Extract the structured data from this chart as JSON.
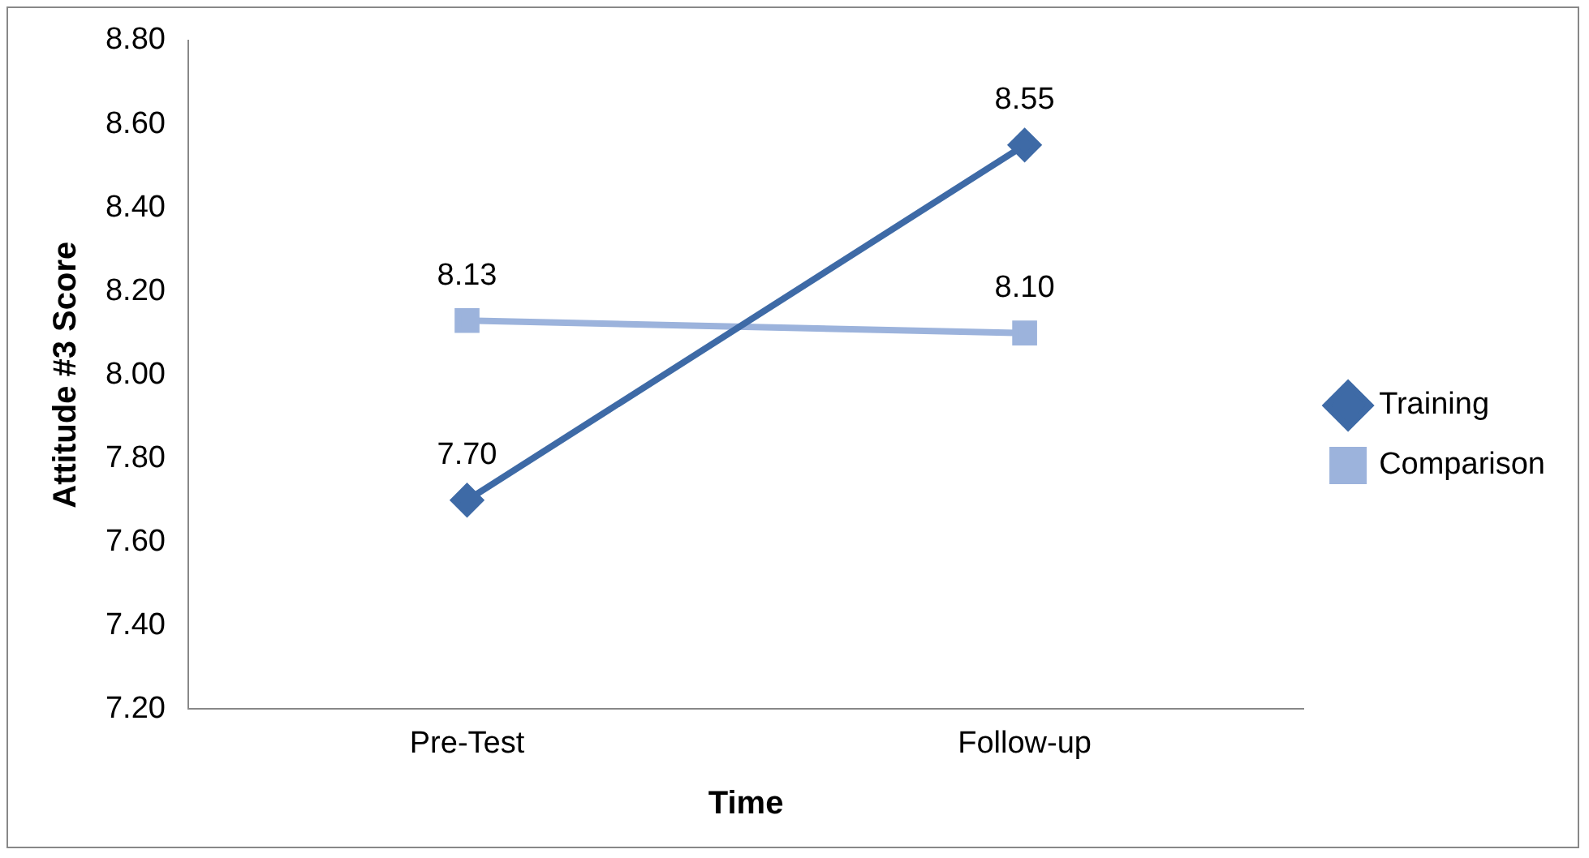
{
  "chart_data": {
    "type": "line",
    "xlabel": "Time",
    "ylabel": "Attitude #3 Score",
    "categories": [
      "Pre-Test",
      "Follow-up"
    ],
    "series": [
      {
        "name": "Training",
        "color": "#3e6aa6",
        "values": [
          7.7,
          8.55
        ],
        "value_labels": [
          "7.70",
          "8.55"
        ],
        "marker": "diamond"
      },
      {
        "name": "Comparison",
        "color": "#9cb3dc",
        "values": [
          8.13,
          8.1
        ],
        "value_labels": [
          "8.13",
          "8.10"
        ],
        "marker": "square"
      }
    ],
    "ylim": [
      7.2,
      8.8
    ],
    "yticks": [
      {
        "value": 7.2,
        "label": "7.20"
      },
      {
        "value": 7.4,
        "label": "7.40"
      },
      {
        "value": 7.6,
        "label": "7.60"
      },
      {
        "value": 7.8,
        "label": "7.80"
      },
      {
        "value": 8.0,
        "label": "8.00"
      },
      {
        "value": 8.2,
        "label": "8.20"
      },
      {
        "value": 8.4,
        "label": "8.40"
      },
      {
        "value": 8.6,
        "label": "8.60"
      },
      {
        "value": 8.8,
        "label": "8.80"
      }
    ],
    "grid": false,
    "legend": "right",
    "line_style": "solid"
  }
}
